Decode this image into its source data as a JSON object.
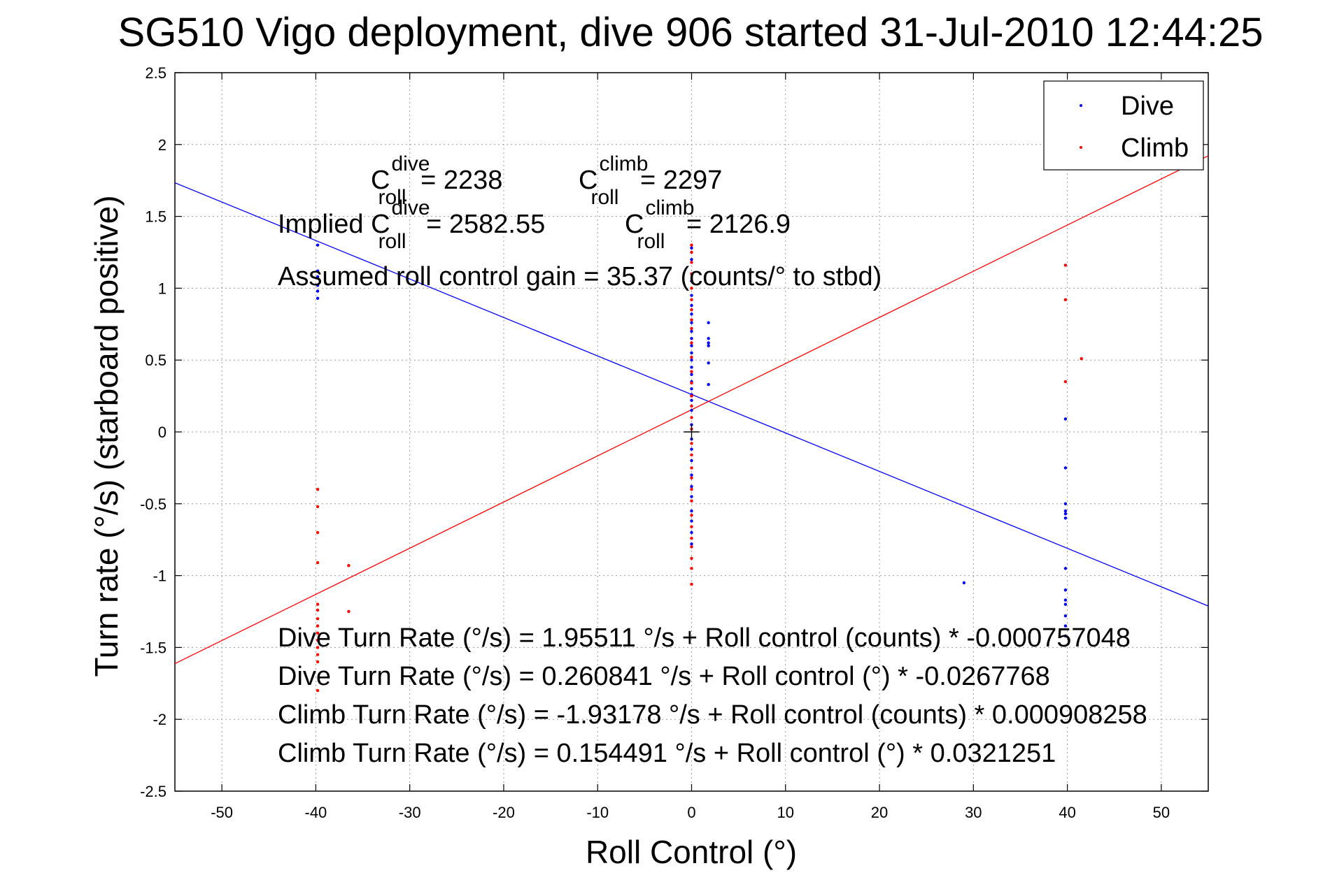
{
  "chart_data": {
    "type": "scatter",
    "title": "SG510 Vigo deployment, dive 906 started 31-Jul-2010 12:44:25",
    "xlabel": "Roll Control (°)",
    "ylabel": "Turn rate (°/s)  (starboard positive)",
    "xlim": [
      -55,
      55
    ],
    "ylim": [
      -2.5,
      2.5
    ],
    "xticks": [
      -50,
      -40,
      -30,
      -20,
      -10,
      0,
      10,
      20,
      30,
      40,
      50
    ],
    "yticks": [
      -2.5,
      -2,
      -1.5,
      -1,
      -0.5,
      0,
      0.5,
      1,
      1.5,
      2,
      2.5
    ],
    "xtick_labels": [
      "-50",
      "-40",
      "-30",
      "-20",
      "-10",
      "0",
      "10",
      "20",
      "30",
      "40",
      "50"
    ],
    "ytick_labels": [
      "-2.5",
      "-2",
      "-1.5",
      "-1",
      "-0.5",
      "0",
      "0.5",
      "1",
      "1.5",
      "2",
      "2.5"
    ],
    "grid": true,
    "legend_position": "top-right",
    "series": [
      {
        "name": "Dive",
        "color": "#0000ff",
        "points": [
          [
            -39.8,
            1.3
          ],
          [
            -39.8,
            1.12
          ],
          [
            -39.8,
            1.02
          ],
          [
            -39.8,
            0.98
          ],
          [
            -39.8,
            0.93
          ],
          [
            -39.8,
            1.08
          ],
          [
            0,
            1.28
          ],
          [
            0,
            1.2
          ],
          [
            0,
            1.05
          ],
          [
            0,
            0.95
          ],
          [
            0,
            0.88
          ],
          [
            0,
            0.82
          ],
          [
            0,
            0.76
          ],
          [
            0,
            0.7
          ],
          [
            0,
            0.65
          ],
          [
            0,
            0.6
          ],
          [
            0,
            0.55
          ],
          [
            0,
            0.5
          ],
          [
            0,
            0.45
          ],
          [
            0,
            0.4
          ],
          [
            0,
            0.35
          ],
          [
            0,
            0.3
          ],
          [
            0,
            0.26
          ],
          [
            0,
            0.22
          ],
          [
            0,
            0.15
          ],
          [
            0,
            0.05
          ],
          [
            0,
            -0.05
          ],
          [
            0,
            -0.12
          ],
          [
            0,
            -0.2
          ],
          [
            0,
            -0.3
          ],
          [
            0,
            -0.38
          ],
          [
            0,
            -0.45
          ],
          [
            0,
            -0.55
          ],
          [
            0,
            -0.62
          ],
          [
            0,
            -0.7
          ],
          [
            0,
            -0.78
          ],
          [
            1.8,
            0.76
          ],
          [
            1.8,
            0.65
          ],
          [
            1.8,
            0.62
          ],
          [
            1.8,
            0.6
          ],
          [
            1.8,
            0.48
          ],
          [
            1.8,
            0.33
          ],
          [
            29.0,
            -1.05
          ],
          [
            39.8,
            0.09
          ],
          [
            39.8,
            -0.25
          ],
          [
            39.8,
            -0.5
          ],
          [
            39.8,
            -0.55
          ],
          [
            39.8,
            -0.57
          ],
          [
            39.8,
            -0.6
          ],
          [
            39.8,
            -0.95
          ],
          [
            39.8,
            -1.1
          ],
          [
            39.8,
            -1.17
          ],
          [
            39.8,
            -1.2
          ],
          [
            39.8,
            -1.28
          ],
          [
            39.8,
            -1.35
          ],
          [
            39.8,
            -1.42
          ]
        ]
      },
      {
        "name": "Climb",
        "color": "#ff0000",
        "points": [
          [
            -39.8,
            -0.4
          ],
          [
            -39.8,
            -0.52
          ],
          [
            -39.8,
            -0.7
          ],
          [
            -39.8,
            -0.91
          ],
          [
            -39.8,
            -1.2
          ],
          [
            -39.8,
            -1.24
          ],
          [
            -39.8,
            -1.3
          ],
          [
            -39.8,
            -1.35
          ],
          [
            -39.8,
            -1.4
          ],
          [
            -39.8,
            -1.45
          ],
          [
            -39.8,
            -1.5
          ],
          [
            -39.8,
            -1.55
          ],
          [
            -39.8,
            -1.6
          ],
          [
            -39.8,
            -1.8
          ],
          [
            -36.5,
            -0.93
          ],
          [
            -36.5,
            -1.25
          ],
          [
            0,
            1.3
          ],
          [
            0,
            1.25
          ],
          [
            0,
            1.18
          ],
          [
            0,
            1.1
          ],
          [
            0,
            1.0
          ],
          [
            0,
            0.92
          ],
          [
            0,
            0.85
          ],
          [
            0,
            0.78
          ],
          [
            0,
            0.72
          ],
          [
            0,
            0.62
          ],
          [
            0,
            0.52
          ],
          [
            0,
            0.42
          ],
          [
            0,
            0.34
          ],
          [
            0,
            0.25
          ],
          [
            0,
            0.18
          ],
          [
            0,
            0.1
          ],
          [
            0,
            0.02
          ],
          [
            0,
            -0.08
          ],
          [
            0,
            -0.16
          ],
          [
            0,
            -0.25
          ],
          [
            0,
            -0.32
          ],
          [
            0,
            -0.4
          ],
          [
            0,
            -0.48
          ],
          [
            0,
            -0.58
          ],
          [
            0,
            -0.66
          ],
          [
            0,
            -0.74
          ],
          [
            0,
            -0.8
          ],
          [
            0,
            -0.88
          ],
          [
            0,
            -0.95
          ],
          [
            0,
            -1.06
          ],
          [
            39.8,
            1.16
          ],
          [
            39.8,
            0.92
          ],
          [
            39.8,
            0.35
          ],
          [
            41.5,
            0.51
          ]
        ]
      }
    ],
    "fit_lines": [
      {
        "name": "Dive fit",
        "color": "#0000ff",
        "intercept": 0.260841,
        "slope": -0.0267768
      },
      {
        "name": "Climb fit",
        "color": "#ff0000",
        "intercept": 0.154491,
        "slope": 0.0321251
      }
    ],
    "origin_marker": [
      0,
      0
    ],
    "annotations": {
      "c_dive": {
        "base": "C",
        "sup": "dive",
        "sub": "roll",
        "text": " = 2238"
      },
      "c_climb": {
        "base": "C",
        "sup": "climb",
        "sub": "roll",
        "text": " = 2297"
      },
      "implied_prefix": "Implied ",
      "implied_dive": {
        "base": "C",
        "sup": "dive",
        "sub": "roll",
        "text": " = 2582.55"
      },
      "implied_climb": {
        "base": "C",
        "sup": "climb",
        "sub": "roll",
        "text": " = 2126.9"
      },
      "gain": "Assumed roll control gain = 35.37 (counts/° to stbd)",
      "eq1": "Dive Turn Rate (°/s) = 1.95511 °/s + Roll control (counts) * -0.000757048",
      "eq2": "Dive Turn Rate (°/s) = 0.260841 °/s + Roll control (°) * -0.0267768",
      "eq3": "Climb Turn Rate (°/s) = -1.93178 °/s + Roll control (counts) * 0.000908258",
      "eq4": "Climb Turn Rate (°/s) = 0.154491 °/s + Roll control (°) * 0.0321251"
    }
  }
}
